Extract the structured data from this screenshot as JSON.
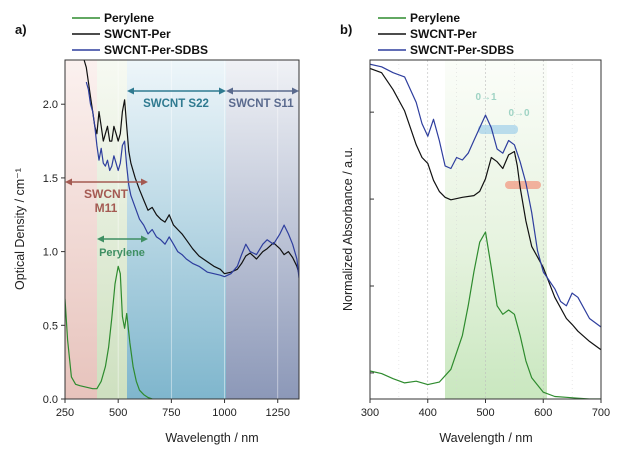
{
  "panels": [
    {
      "letter": "a)",
      "legend": [
        "Perylene",
        "SWCNT-Per",
        "SWCNT-Per-SDBS"
      ],
      "regions": [
        {
          "label_lines": [
            "SWCNT",
            "M11"
          ],
          "from": 250,
          "to": 630,
          "color": "#a45a52"
        },
        {
          "label_lines": [
            "Perylene"
          ],
          "from": 390,
          "to": 630,
          "color": "#3f8f63"
        },
        {
          "label_lines": [
            "SWCNT S22"
          ],
          "from": 530,
          "to": 1000,
          "color": "#2f7a90"
        },
        {
          "label_lines": [
            "SWCNT S11"
          ],
          "from": 1000,
          "to": 1350,
          "color": "#5a6a8e"
        }
      ]
    },
    {
      "letter": "b)",
      "legend": [
        "Perylene",
        "SWCNT-Per",
        "SWCNT-Per-SDBS"
      ],
      "annotations": [
        "0→1",
        "0→0"
      ],
      "regions": [
        {
          "from": 430,
          "to": 605,
          "color": "#8fd08a"
        }
      ]
    }
  ],
  "chart_data": [
    {
      "type": "line",
      "xlabel": "Wavelength / nm",
      "ylabel": "Optical Density / cm⁻¹",
      "xlim": [
        250,
        1350
      ],
      "ylim": [
        0,
        2.3
      ],
      "xticks": [
        250,
        500,
        750,
        1000,
        1250
      ],
      "yticks": [
        0.0,
        0.5,
        1.0,
        1.5,
        2.0
      ],
      "grid": false,
      "legend_position": "top-left",
      "series": [
        {
          "name": "Perylene",
          "color": "#2e8b2e",
          "x": [
            250,
            262,
            280,
            300,
            320,
            350,
            380,
            400,
            420,
            440,
            455,
            470,
            485,
            500,
            510,
            520,
            530,
            540,
            555,
            570,
            585,
            600,
            620,
            640,
            660
          ],
          "y": [
            0.68,
            0.4,
            0.15,
            0.1,
            0.09,
            0.08,
            0.07,
            0.07,
            0.12,
            0.22,
            0.35,
            0.55,
            0.78,
            0.9,
            0.85,
            0.56,
            0.48,
            0.58,
            0.38,
            0.22,
            0.12,
            0.06,
            0.03,
            0.01,
            0.0
          ]
        },
        {
          "name": "SWCNT-Per",
          "color": "#111111",
          "x": [
            340,
            350,
            360,
            370,
            380,
            390,
            400,
            410,
            420,
            430,
            440,
            450,
            460,
            470,
            480,
            490,
            500,
            510,
            520,
            530,
            540,
            550,
            560,
            580,
            600,
            620,
            640,
            660,
            680,
            700,
            720,
            740,
            760,
            780,
            800,
            820,
            850,
            880,
            900,
            920,
            950,
            980,
            1000,
            1030,
            1060,
            1080,
            1100,
            1120,
            1150,
            1180,
            1200,
            1230,
            1260,
            1280,
            1300,
            1320,
            1340,
            1350
          ],
          "y": [
            2.3,
            2.25,
            2.15,
            2.05,
            1.95,
            1.85,
            1.8,
            1.95,
            1.85,
            1.75,
            1.8,
            1.85,
            1.75,
            1.75,
            1.85,
            1.8,
            1.75,
            1.8,
            1.95,
            2.03,
            1.85,
            1.68,
            1.6,
            1.5,
            1.42,
            1.35,
            1.28,
            1.3,
            1.25,
            1.22,
            1.2,
            1.25,
            1.18,
            1.15,
            1.12,
            1.08,
            1.02,
            0.97,
            0.95,
            0.93,
            0.9,
            0.88,
            0.85,
            0.86,
            0.88,
            0.92,
            0.97,
            0.99,
            0.95,
            1.0,
            1.02,
            1.06,
            1.02,
            0.98,
            1.0,
            0.96,
            0.9,
            0.85
          ]
        },
        {
          "name": "SWCNT-Per-SDBS",
          "color": "#2e3e9e",
          "x": [
            350,
            360,
            370,
            380,
            390,
            400,
            410,
            420,
            430,
            440,
            450,
            460,
            470,
            480,
            490,
            500,
            510,
            520,
            530,
            540,
            550,
            560,
            580,
            600,
            620,
            640,
            660,
            680,
            700,
            720,
            740,
            760,
            780,
            800,
            820,
            850,
            880,
            900,
            920,
            950,
            980,
            1000,
            1030,
            1060,
            1080,
            1100,
            1120,
            1150,
            1180,
            1200,
            1230,
            1260,
            1280,
            1300,
            1320,
            1340,
            1350
          ],
          "y": [
            2.15,
            2.1,
            2.0,
            1.95,
            1.85,
            1.72,
            1.62,
            1.7,
            1.6,
            1.58,
            1.62,
            1.55,
            1.58,
            1.65,
            1.6,
            1.55,
            1.6,
            1.72,
            1.75,
            1.58,
            1.45,
            1.38,
            1.3,
            1.22,
            1.18,
            1.12,
            1.15,
            1.1,
            1.08,
            1.05,
            1.1,
            1.05,
            1.0,
            0.98,
            0.95,
            0.92,
            0.9,
            0.88,
            0.86,
            0.85,
            0.84,
            0.83,
            0.85,
            0.9,
            0.98,
            1.05,
            1.0,
            0.98,
            1.05,
            1.08,
            1.05,
            1.12,
            1.18,
            1.12,
            1.05,
            0.95,
            0.82
          ]
        }
      ]
    },
    {
      "type": "line",
      "xlabel": "Wavelength / nm",
      "ylabel": "Normalized Absorbance / a.u.",
      "xlim": [
        300,
        700
      ],
      "ylim": [
        0,
        4.0
      ],
      "xticks": [
        300,
        400,
        500,
        600,
        700
      ],
      "yticks": [],
      "grid": true,
      "legend_position": "top-left",
      "series": [
        {
          "name": "Perylene",
          "color": "#2e8b2e",
          "x": [
            300,
            320,
            340,
            360,
            380,
            400,
            420,
            440,
            460,
            470,
            480,
            490,
            500,
            510,
            520,
            530,
            540,
            550,
            560,
            570,
            580,
            600,
            620,
            640,
            660,
            680,
            700
          ],
          "y": [
            0.33,
            0.3,
            0.24,
            0.19,
            0.21,
            0.17,
            0.2,
            0.35,
            0.75,
            1.1,
            1.5,
            1.85,
            1.97,
            1.55,
            1.1,
            1.0,
            1.05,
            1.0,
            0.75,
            0.45,
            0.25,
            0.08,
            0.03,
            0.02,
            0.01,
            0.0,
            0.0
          ]
        },
        {
          "name": "SWCNT-Per",
          "color": "#111111",
          "x": [
            300,
            320,
            340,
            360,
            370,
            380,
            390,
            400,
            410,
            420,
            430,
            440,
            460,
            480,
            490,
            500,
            510,
            520,
            530,
            540,
            550,
            555,
            560,
            570,
            580,
            600,
            620,
            640,
            650,
            660,
            680,
            700
          ],
          "y": [
            3.9,
            3.85,
            3.65,
            3.4,
            3.2,
            3.0,
            2.85,
            2.78,
            2.58,
            2.45,
            2.38,
            2.35,
            2.38,
            2.4,
            2.45,
            2.6,
            2.85,
            2.8,
            2.72,
            2.88,
            2.92,
            2.75,
            2.5,
            2.1,
            1.8,
            1.55,
            1.2,
            0.95,
            0.88,
            0.8,
            0.68,
            0.58
          ]
        },
        {
          "name": "SWCNT-Per-SDBS",
          "color": "#2e3e9e",
          "x": [
            300,
            320,
            340,
            360,
            380,
            390,
            400,
            410,
            420,
            430,
            440,
            450,
            460,
            470,
            480,
            490,
            500,
            510,
            520,
            530,
            540,
            550,
            560,
            570,
            580,
            590,
            600,
            620,
            630,
            640,
            650,
            660,
            680,
            700
          ],
          "y": [
            3.95,
            3.92,
            3.85,
            3.8,
            3.5,
            3.25,
            3.1,
            3.3,
            3.05,
            2.75,
            2.72,
            2.85,
            2.82,
            2.9,
            3.05,
            3.2,
            3.35,
            3.2,
            2.95,
            2.9,
            3.05,
            3.0,
            2.8,
            2.55,
            2.2,
            1.75,
            1.5,
            1.3,
            1.15,
            1.1,
            1.25,
            1.2,
            0.95,
            0.85
          ]
        }
      ]
    }
  ]
}
